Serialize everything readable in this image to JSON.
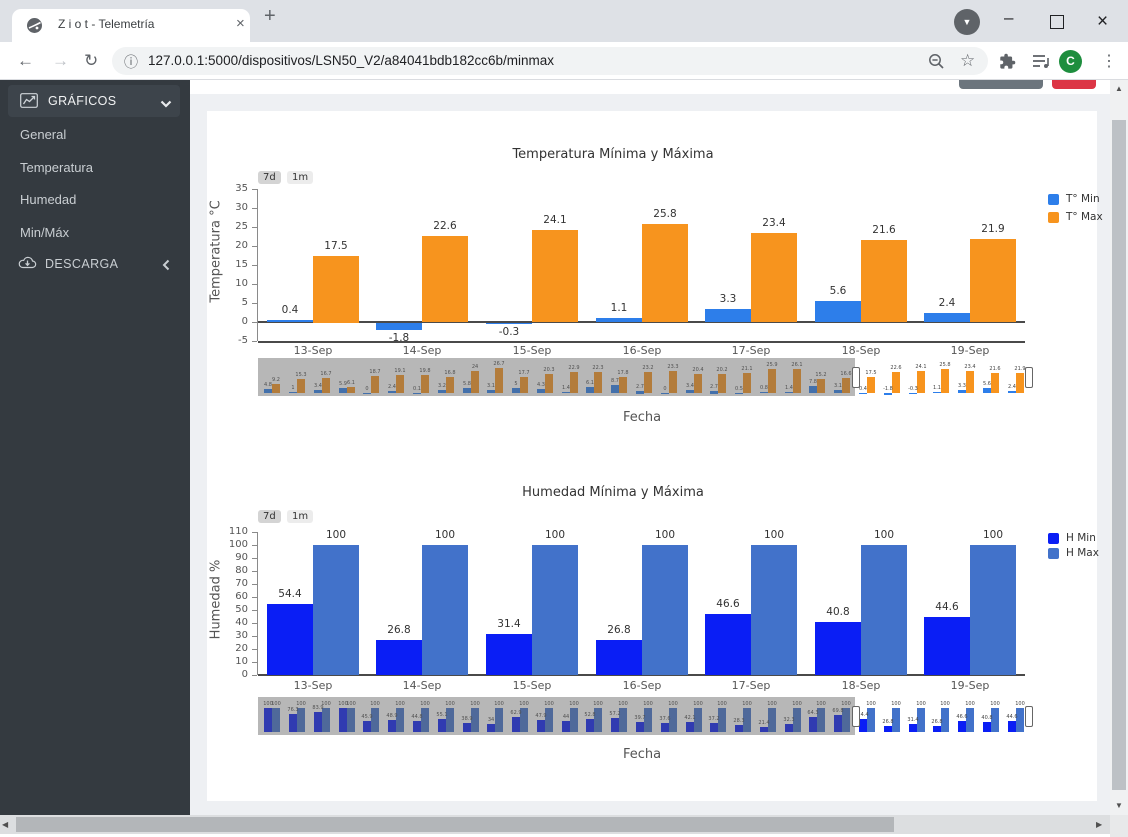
{
  "browser": {
    "tab_title": "Z i o t - Telemetría",
    "url": "127.0.0.1:5000/dispositivos/LSN50_V2/a84041bdb182cc6b/minmax",
    "profile_initial": "C",
    "glyphs": {
      "back": "←",
      "forward": "→",
      "reload": "↻",
      "info": "ⓘ",
      "star": "☆",
      "menu": "⋮",
      "tab_close": "×",
      "new_tab": "+",
      "minimize": "–",
      "window_close": "×",
      "media_chevron": "▼",
      "scroll_up": "▲",
      "scroll_down": "▼",
      "scroll_left": "◀",
      "scroll_right": "▶"
    }
  },
  "sidebar": {
    "header_label": "GRÁFICOS",
    "items": [
      {
        "label": "General"
      },
      {
        "label": "Temperatura"
      },
      {
        "label": "Humedad"
      },
      {
        "label": "Min/Máx"
      }
    ],
    "download_label": "DESCARGA"
  },
  "page": {
    "range_buttons": [
      "7d",
      "1m"
    ],
    "xaxis_title": "Fecha"
  },
  "chart_data": [
    {
      "type": "bar",
      "title": "Temperatura Mínima y Máxima",
      "ylabel": "Temperatura °C",
      "xlabel": "Fecha",
      "ylim": [
        -5,
        35
      ],
      "ytick_step": 5,
      "legend_position": "right",
      "grid": false,
      "categories": [
        "13-Sep",
        "14-Sep",
        "15-Sep",
        "16-Sep",
        "17-Sep",
        "18-Sep",
        "19-Sep"
      ],
      "series": [
        {
          "name": "T° Min",
          "color": "#2d7eea",
          "values": [
            0.4,
            -1.8,
            -0.3,
            1.1,
            3.3,
            5.6,
            2.4
          ]
        },
        {
          "name": "T° Max",
          "color": "#f7941e",
          "values": [
            17.5,
            22.6,
            24.1,
            25.8,
            23.4,
            21.6,
            21.9
          ]
        }
      ],
      "navigator": {
        "visible_from_index": 24,
        "min": [
          4.8,
          1,
          3.4,
          5.9,
          0,
          2.4,
          0.1,
          3.2,
          5.8,
          3.1,
          5,
          4.3,
          1.4,
          6.1,
          8.7,
          2.7,
          0,
          3.4,
          2.7,
          0.5,
          0.8,
          1.4,
          7.8,
          3.1,
          0.4,
          -1.8,
          -0.3,
          1.1,
          3.3,
          5.6,
          2.4
        ],
        "max": [
          9.2,
          15.3,
          16.7,
          6.1,
          18.7,
          19.1,
          19.8,
          16.8,
          24,
          26.7,
          17.7,
          20.3,
          22.9,
          22.3,
          17.8,
          23.2,
          23.3,
          20.4,
          20.2,
          21.1,
          25.9,
          26.1,
          15.2,
          16.6,
          17.5,
          22.6,
          24.1,
          25.8,
          23.4,
          21.6,
          21.9
        ]
      }
    },
    {
      "type": "bar",
      "title": "Humedad Mínima y Máxima",
      "ylabel": "Humedad %",
      "xlabel": "Fecha",
      "ylim": [
        0,
        110
      ],
      "ytick_step": 10,
      "legend_position": "right",
      "grid": false,
      "categories": [
        "13-Sep",
        "14-Sep",
        "15-Sep",
        "16-Sep",
        "17-Sep",
        "18-Sep",
        "19-Sep"
      ],
      "series": [
        {
          "name": "H Min",
          "color": "#0a1ef5",
          "values": [
            54.4,
            26.8,
            31.4,
            26.8,
            46.6,
            40.8,
            44.6
          ]
        },
        {
          "name": "H Max",
          "color": "#4272ca",
          "values": [
            100,
            100,
            100,
            100,
            100,
            100,
            100
          ]
        }
      ],
      "navigator": {
        "visible_from_index": 24,
        "min": [
          100,
          76.3,
          83.9,
          100,
          45.9,
          48.9,
          44.8,
          55.1,
          38.9,
          34,
          62.9,
          47.9,
          44,
          52.8,
          57.2,
          39.7,
          37.6,
          42.1,
          37.2,
          28.3,
          21.4,
          32.3,
          64.3,
          69.8,
          54.4,
          26.8,
          31.4,
          26.8,
          46.6,
          40.8,
          44.6
        ],
        "max": [
          100,
          100,
          100,
          100,
          100,
          100,
          100,
          100,
          100,
          100,
          100,
          100,
          100,
          100,
          100,
          100,
          100,
          100,
          100,
          100,
          100,
          100,
          100,
          100,
          100,
          100,
          100,
          100,
          100,
          100,
          100
        ]
      }
    }
  ]
}
